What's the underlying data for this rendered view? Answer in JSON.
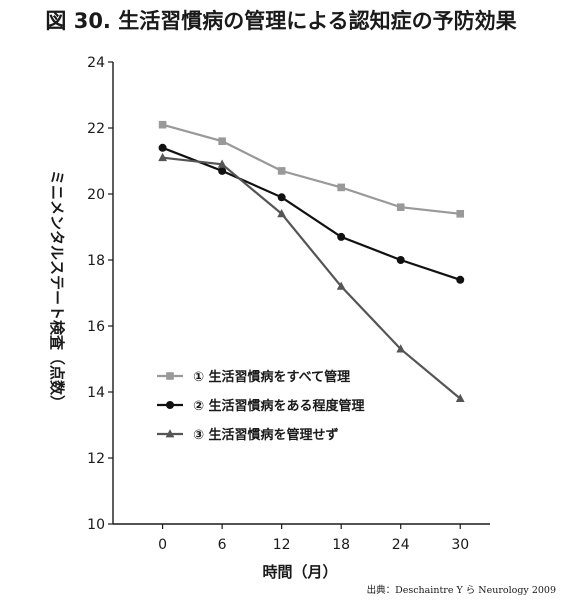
{
  "chart_data": {
    "type": "line",
    "title": "図 30. 生活習慣病の管理による認知症の予防効果",
    "xlabel": "時間（月）",
    "ylabel": "ミニメンタルステート検査（点数）",
    "ylim": [
      10,
      24
    ],
    "xlim": [
      -5,
      33
    ],
    "x_ticks": [
      0,
      6,
      12,
      18,
      24,
      30
    ],
    "y_ticks": [
      10,
      12,
      14,
      16,
      18,
      20,
      22,
      24
    ],
    "x_tick_labels": [
      "0",
      "6",
      "12",
      "18",
      "24",
      "30"
    ],
    "y_tick_labels": [
      "10",
      "12",
      "14",
      "16",
      "18",
      "20",
      "22",
      "24"
    ],
    "grid": false,
    "legend_position": "center-left",
    "source": "出典：Deschaintre Y ら Neurology 2009",
    "series": [
      {
        "name": "① 生活習慣病をすべて管理",
        "marker": "square",
        "color": "#999999",
        "x": [
          0,
          6,
          12,
          18,
          24,
          30
        ],
        "values": [
          22.1,
          21.6,
          20.7,
          20.2,
          19.6,
          19.4
        ]
      },
      {
        "name": "② 生活習慣病をある程度管理",
        "marker": "circle",
        "color": "#111111",
        "x": [
          0,
          6,
          12,
          18,
          24,
          30
        ],
        "values": [
          21.4,
          20.7,
          19.9,
          18.7,
          18.0,
          17.4
        ]
      },
      {
        "name": "③ 生活習慣病を管理せず",
        "marker": "triangle",
        "color": "#555555",
        "x": [
          0,
          6,
          12,
          18,
          24,
          30
        ],
        "values": [
          21.1,
          20.9,
          19.4,
          17.2,
          15.3,
          13.8
        ]
      }
    ]
  }
}
